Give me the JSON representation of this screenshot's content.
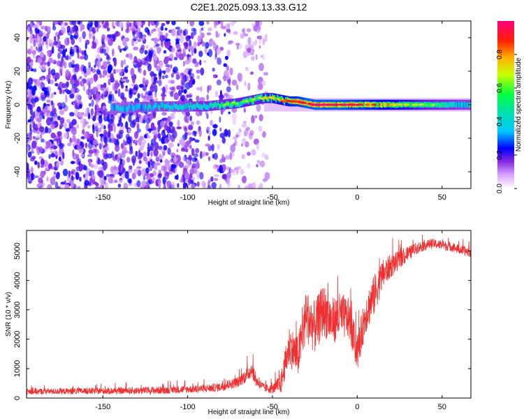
{
  "figure": {
    "title": "C2E1.2025.093.13.33.G12"
  },
  "chart_data": [
    {
      "type": "heatmap",
      "xlabel": "Height of straight line (km)",
      "ylabel": "Frequency (Hz)",
      "xlim": [
        -195,
        67
      ],
      "ylim": [
        -50,
        50
      ],
      "xticks": [
        -150,
        -100,
        -50,
        0,
        50
      ],
      "yticks": [
        -40,
        -20,
        0,
        20,
        40
      ],
      "colorbar": {
        "label": "Normalized spectral amplitude",
        "range": [
          0,
          1
        ],
        "ticks": [
          "0.0",
          "0.2",
          "0.4",
          "0.6",
          "0.8"
        ],
        "stops": [
          "#ffffff",
          "#9d3bff",
          "#0000ff",
          "#00d0ff",
          "#00ff66",
          "#d8ff00",
          "#ffaa00",
          "#ff0000",
          "#ff0080"
        ]
      },
      "ridge": {
        "x": [
          -140,
          -120,
          -100,
          -90,
          -80,
          -70,
          -60,
          -55,
          -50,
          -45,
          -40,
          -35,
          -30,
          -25,
          -20,
          -10,
          0,
          10,
          20,
          30,
          40,
          50,
          60,
          67
        ],
        "freq": [
          -2,
          -1,
          -1,
          -1,
          0,
          1,
          3,
          4,
          4,
          3,
          2,
          2,
          1,
          0,
          0,
          0,
          0,
          0,
          0,
          0,
          0,
          0,
          0,
          0
        ],
        "amplitude": [
          0.45,
          0.5,
          0.5,
          0.55,
          0.55,
          0.6,
          0.6,
          0.65,
          0.7,
          0.75,
          0.85,
          0.9,
          0.95,
          0.95,
          0.95,
          0.95,
          0.9,
          0.85,
          0.75,
          0.7,
          0.6,
          0.55,
          0.5,
          0.5
        ]
      },
      "noise_region_x": [
        -195,
        -55
      ],
      "noise_amplitude_approx": 0.2
    },
    {
      "type": "line",
      "xlabel": "Height of straight line (km)",
      "ylabel": "SNR (10 * v/v)",
      "xlim": [
        -195,
        67
      ],
      "ylim": [
        0,
        5700
      ],
      "xticks": [
        -150,
        -100,
        -50,
        0,
        50
      ],
      "yticks": [
        0,
        1000,
        2000,
        3000,
        4000,
        5000
      ],
      "series": [
        {
          "color": "#f03030",
          "x": [
            -195,
            -150,
            -120,
            -100,
            -90,
            -80,
            -70,
            -65,
            -62,
            -60,
            -55,
            -50,
            -45,
            -40,
            -35,
            -30,
            -25,
            -20,
            -15,
            -10,
            -5,
            0,
            5,
            10,
            15,
            20,
            25,
            30,
            35,
            40,
            45,
            50,
            55,
            60,
            67
          ],
          "y": [
            220,
            240,
            260,
            300,
            320,
            380,
            550,
            800,
            1000,
            600,
            350,
            300,
            500,
            1800,
            1400,
            2800,
            2400,
            3000,
            2600,
            2800,
            2700,
            1500,
            2900,
            3500,
            4200,
            4500,
            4700,
            4900,
            5100,
            5200,
            5250,
            5200,
            5150,
            5050,
            4950
          ],
          "spread": [
            100,
            110,
            130,
            130,
            140,
            150,
            180,
            260,
            300,
            200,
            150,
            150,
            350,
            700,
            700,
            900,
            900,
            900,
            800,
            800,
            700,
            600,
            700,
            700,
            500,
            400,
            300,
            250,
            200,
            180,
            160,
            160,
            160,
            160,
            170
          ]
        }
      ]
    }
  ]
}
